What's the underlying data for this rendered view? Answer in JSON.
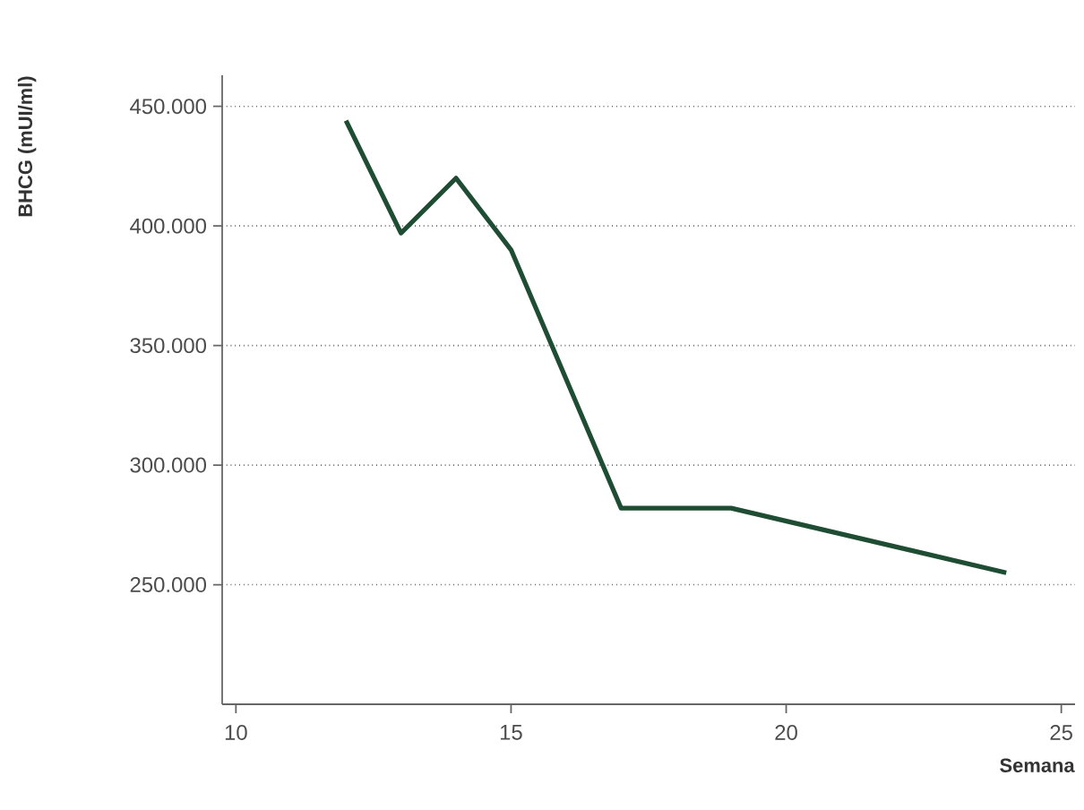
{
  "chart_data": {
    "type": "line",
    "xlabel": "Semana",
    "ylabel": "BHCG (mUI/ml)",
    "x": [
      12,
      13,
      14,
      15,
      17,
      19,
      24
    ],
    "series": [
      {
        "color": "#1f4d33",
        "values": [
          444000,
          397000,
          420000,
          390000,
          282000,
          282000,
          255000
        ]
      }
    ],
    "xlim": [
      9.75,
      25.25
    ],
    "xticks": [
      10,
      15,
      20,
      25
    ],
    "ylim": [
      200000,
      463000
    ],
    "yticks": [
      {
        "value": 250000,
        "label": "250.000"
      },
      {
        "value": 300000,
        "label": "300.000"
      },
      {
        "value": 350000,
        "label": "350.000"
      },
      {
        "value": 400000,
        "label": "400.000"
      },
      {
        "value": 450000,
        "label": "450.000"
      }
    ],
    "grid": "y",
    "marker": "none",
    "line_style": "solid"
  }
}
